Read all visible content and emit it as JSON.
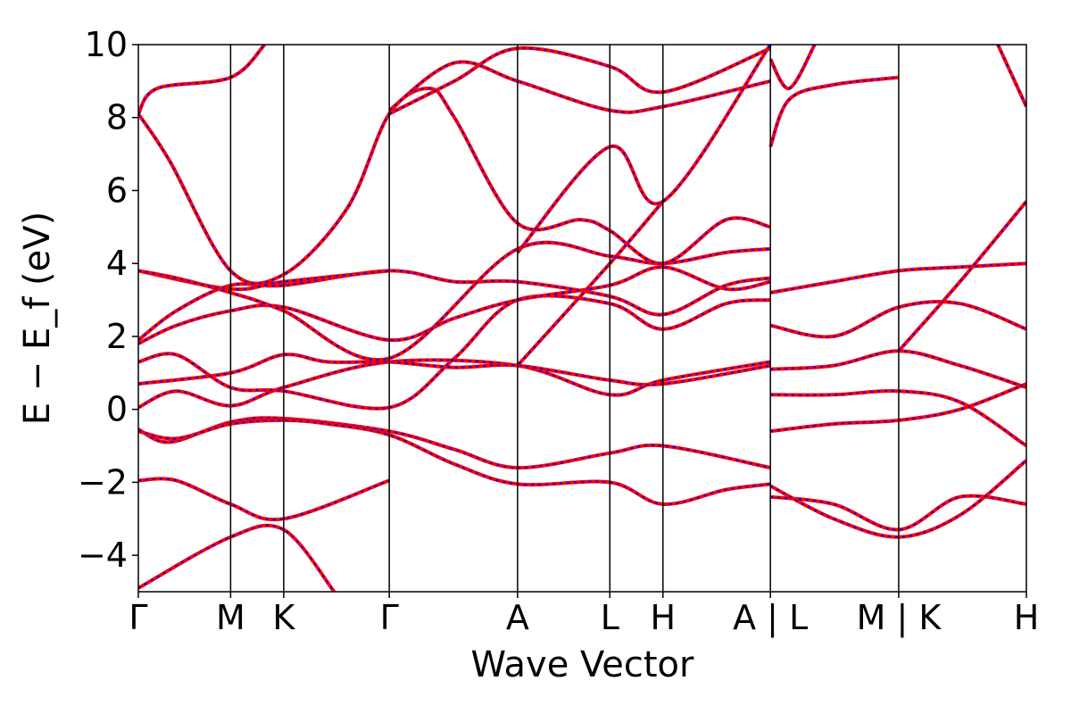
{
  "chart_data": {
    "type": "line",
    "xlabel": "Wave Vector",
    "ylabel": "E − E_f (eV)",
    "ylim": [
      -5,
      10
    ],
    "y_ticks": [
      -4,
      -2,
      0,
      2,
      4,
      6,
      8,
      10
    ],
    "y_tick_labels": [
      "−4",
      "−2",
      "0",
      "2",
      "4",
      "6",
      "8",
      "10"
    ],
    "k_ticks": [
      {
        "label": "Γ",
        "x": 0.0
      },
      {
        "label": "M",
        "x": 0.146
      },
      {
        "label": "K",
        "x": 0.23
      },
      {
        "label": "Γ",
        "x": 0.397
      },
      {
        "label": "A",
        "x": 0.6
      },
      {
        "label": "L",
        "x": 0.746
      },
      {
        "label": "H",
        "x": 0.83
      },
      {
        "label": "A | L",
        "x": 1.0
      },
      {
        "label": "M | K",
        "x": 1.203
      },
      {
        "label": "H",
        "x": 1.405
      }
    ],
    "xlim": [
      0,
      1.405
    ],
    "grid": false,
    "legend": "none",
    "series": [
      {
        "values": [
          [
            0.0,
            -4.9
          ],
          [
            0.146,
            -3.5
          ],
          [
            0.23,
            -3.3
          ],
          [
            0.31,
            -5.0
          ]
        ]
      },
      {
        "values": [
          [
            0.0,
            -1.95
          ],
          [
            0.06,
            -1.95
          ],
          [
            0.146,
            -2.6
          ],
          [
            0.23,
            -3.0
          ],
          [
            0.397,
            -1.95
          ]
        ]
      },
      {
        "values": [
          [
            0.0,
            -0.55
          ],
          [
            0.05,
            -0.9
          ],
          [
            0.146,
            -0.35
          ],
          [
            0.23,
            -0.25
          ],
          [
            0.397,
            -0.6
          ],
          [
            0.5,
            -1.1
          ],
          [
            0.6,
            -1.6
          ],
          [
            0.746,
            -1.2
          ],
          [
            0.83,
            -1.0
          ],
          [
            1.0,
            -1.6
          ]
        ]
      },
      {
        "values": [
          [
            0.0,
            -0.6
          ],
          [
            0.06,
            -0.8
          ],
          [
            0.146,
            -0.4
          ],
          [
            0.23,
            -0.3
          ],
          [
            0.3,
            -0.4
          ],
          [
            0.397,
            -0.7
          ],
          [
            0.5,
            -1.5
          ],
          [
            0.6,
            -2.05
          ],
          [
            0.746,
            -2.0
          ],
          [
            0.83,
            -2.6
          ],
          [
            0.93,
            -2.2
          ],
          [
            1.0,
            -2.05
          ]
        ]
      },
      {
        "values": [
          [
            0.0,
            0.05
          ],
          [
            0.06,
            0.5
          ],
          [
            0.146,
            0.1
          ],
          [
            0.23,
            0.6
          ],
          [
            0.397,
            1.3
          ],
          [
            0.6,
            1.2
          ],
          [
            0.746,
            0.4
          ],
          [
            0.83,
            0.8
          ],
          [
            1.0,
            1.3
          ]
        ]
      },
      {
        "values": [
          [
            0.0,
            0.7
          ],
          [
            0.146,
            1.0
          ],
          [
            0.23,
            1.5
          ],
          [
            0.3,
            1.3
          ],
          [
            0.397,
            1.3
          ],
          [
            0.5,
            1.15
          ],
          [
            0.6,
            1.2
          ],
          [
            0.746,
            0.8
          ],
          [
            0.83,
            0.7
          ],
          [
            1.0,
            1.2
          ]
        ]
      },
      {
        "values": [
          [
            0.0,
            1.3
          ],
          [
            0.06,
            1.5
          ],
          [
            0.146,
            0.6
          ],
          [
            0.23,
            0.5
          ],
          [
            0.397,
            0.05
          ],
          [
            0.5,
            1.4
          ],
          [
            0.6,
            3.0
          ],
          [
            0.746,
            2.9
          ],
          [
            0.83,
            2.2
          ],
          [
            0.93,
            2.9
          ],
          [
            1.0,
            3.0
          ]
        ]
      },
      {
        "values": [
          [
            0.0,
            1.8
          ],
          [
            0.06,
            2.3
          ],
          [
            0.146,
            2.7
          ],
          [
            0.23,
            2.8
          ],
          [
            0.397,
            1.9
          ],
          [
            0.5,
            2.5
          ],
          [
            0.6,
            3.0
          ],
          [
            0.746,
            3.4
          ],
          [
            0.83,
            3.9
          ],
          [
            0.93,
            3.3
          ],
          [
            1.0,
            3.5
          ]
        ]
      },
      {
        "values": [
          [
            0.0,
            1.9
          ],
          [
            0.06,
            2.7
          ],
          [
            0.146,
            3.4
          ],
          [
            0.23,
            3.4
          ],
          [
            0.397,
            3.8
          ],
          [
            0.5,
            3.5
          ],
          [
            0.6,
            3.5
          ],
          [
            0.746,
            3.1
          ],
          [
            0.83,
            2.6
          ],
          [
            0.93,
            3.4
          ],
          [
            1.0,
            3.6
          ]
        ]
      },
      {
        "values": [
          [
            0.0,
            3.8
          ],
          [
            0.146,
            3.3
          ],
          [
            0.23,
            3.5
          ],
          [
            0.397,
            3.8
          ]
        ]
      },
      {
        "values": [
          [
            0.0,
            3.8
          ],
          [
            0.06,
            3.6
          ],
          [
            0.146,
            3.2
          ],
          [
            0.23,
            2.7
          ],
          [
            0.397,
            1.4
          ],
          [
            0.6,
            4.4
          ],
          [
            0.746,
            4.2
          ],
          [
            0.83,
            4.0
          ],
          [
            0.93,
            4.3
          ],
          [
            1.0,
            4.4
          ]
        ]
      },
      {
        "values": [
          [
            0.0,
            8.1
          ],
          [
            0.05,
            6.8
          ],
          [
            0.146,
            3.8
          ],
          [
            0.23,
            3.7
          ],
          [
            0.33,
            5.5
          ],
          [
            0.397,
            8.1
          ],
          [
            0.46,
            8.8
          ],
          [
            0.5,
            8.0
          ],
          [
            0.6,
            5.1
          ],
          [
            0.7,
            5.2
          ],
          [
            0.746,
            4.9
          ],
          [
            0.83,
            4.0
          ],
          [
            0.93,
            5.2
          ],
          [
            1.0,
            5.0
          ]
        ]
      },
      {
        "values": [
          [
            0.0,
            8.1
          ],
          [
            0.03,
            8.8
          ],
          [
            0.146,
            9.1
          ],
          [
            0.2,
            10.0
          ]
        ]
      },
      {
        "values": [
          [
            0.397,
            8.1
          ],
          [
            0.5,
            9.0
          ],
          [
            0.6,
            9.9
          ],
          [
            0.746,
            9.4
          ],
          [
            0.83,
            8.7
          ],
          [
            1.0,
            9.9
          ]
        ]
      },
      {
        "values": [
          [
            0.397,
            8.2
          ],
          [
            0.5,
            9.5
          ],
          [
            0.6,
            9.0
          ],
          [
            0.746,
            8.2
          ],
          [
            0.83,
            8.3
          ],
          [
            1.0,
            9.0
          ]
        ]
      },
      {
        "values": [
          [
            0.6,
            4.3
          ],
          [
            0.746,
            7.2
          ],
          [
            0.83,
            5.7
          ],
          [
            1.0,
            10.0
          ]
        ]
      },
      {
        "values": [
          [
            0.83,
            5.7
          ],
          [
            0.746,
            4.0
          ],
          [
            0.6,
            1.2
          ]
        ]
      },
      {
        "values": [
          [
            1.0,
            -0.6
          ],
          [
            1.1,
            -0.4
          ],
          [
            1.203,
            -0.3
          ],
          [
            1.3,
            0.0
          ],
          [
            1.405,
            0.7
          ]
        ]
      },
      {
        "values": [
          [
            1.0,
            -2.4
          ],
          [
            1.1,
            -2.6
          ],
          [
            1.203,
            -3.3
          ],
          [
            1.3,
            -2.4
          ],
          [
            1.405,
            -2.6
          ]
        ]
      },
      {
        "values": [
          [
            1.0,
            -2.1
          ],
          [
            1.1,
            -3.0
          ],
          [
            1.203,
            -3.5
          ],
          [
            1.3,
            -2.9
          ],
          [
            1.405,
            -1.4
          ]
        ]
      },
      {
        "values": [
          [
            1.0,
            0.4
          ],
          [
            1.1,
            0.4
          ],
          [
            1.203,
            0.5
          ],
          [
            1.3,
            0.2
          ],
          [
            1.405,
            -1.0
          ]
        ]
      },
      {
        "values": [
          [
            1.0,
            1.1
          ],
          [
            1.1,
            1.2
          ],
          [
            1.203,
            1.6
          ],
          [
            1.3,
            1.2
          ],
          [
            1.405,
            0.6
          ]
        ]
      },
      {
        "values": [
          [
            1.0,
            2.3
          ],
          [
            1.1,
            2.0
          ],
          [
            1.203,
            2.8
          ],
          [
            1.3,
            2.9
          ],
          [
            1.405,
            2.2
          ]
        ]
      },
      {
        "values": [
          [
            1.0,
            3.2
          ],
          [
            1.1,
            3.5
          ],
          [
            1.203,
            3.8
          ],
          [
            1.3,
            3.9
          ],
          [
            1.405,
            4.0
          ]
        ]
      },
      {
        "values": [
          [
            1.0,
            7.2
          ],
          [
            1.03,
            8.5
          ],
          [
            1.1,
            8.9
          ],
          [
            1.203,
            9.1
          ]
        ]
      },
      {
        "values": [
          [
            1.0,
            9.6
          ],
          [
            1.03,
            8.8
          ],
          [
            1.07,
            10.0
          ]
        ]
      },
      {
        "values": [
          [
            1.203,
            1.6
          ],
          [
            1.3,
            3.5
          ],
          [
            1.405,
            5.7
          ]
        ]
      },
      {
        "values": [
          [
            1.36,
            10.0
          ],
          [
            1.405,
            8.3
          ]
        ]
      }
    ]
  }
}
